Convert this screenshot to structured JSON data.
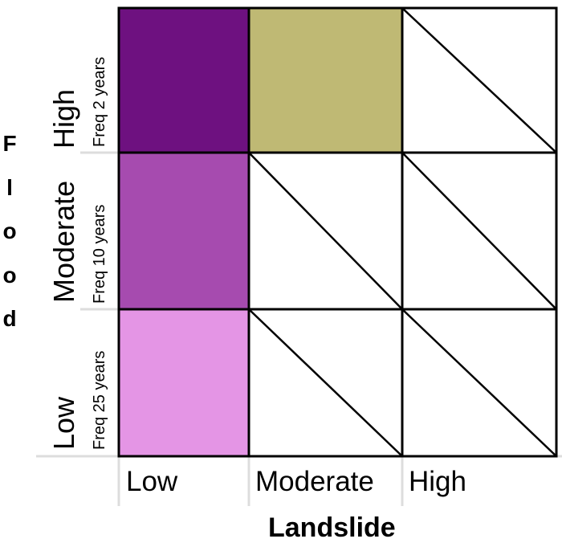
{
  "y_axis": {
    "title": "Flood",
    "levels": [
      {
        "label": "High",
        "frequency": "Freq 2 years"
      },
      {
        "label": "Moderate",
        "frequency": "Freq 10 years"
      },
      {
        "label": "Low",
        "frequency": "Freq 25 years"
      }
    ]
  },
  "x_axis": {
    "title": "Landslide",
    "levels": [
      "Low",
      "Moderate",
      "High"
    ]
  },
  "cells": [
    [
      "#6e1180",
      "#bfb974",
      null
    ],
    [
      "#a64baf",
      null,
      null
    ],
    [
      "#e495e5",
      null,
      null
    ]
  ],
  "colors": {
    "grid_line": "#000000",
    "axis_line": "#dddddd",
    "empty_cell": "#ffffff"
  }
}
